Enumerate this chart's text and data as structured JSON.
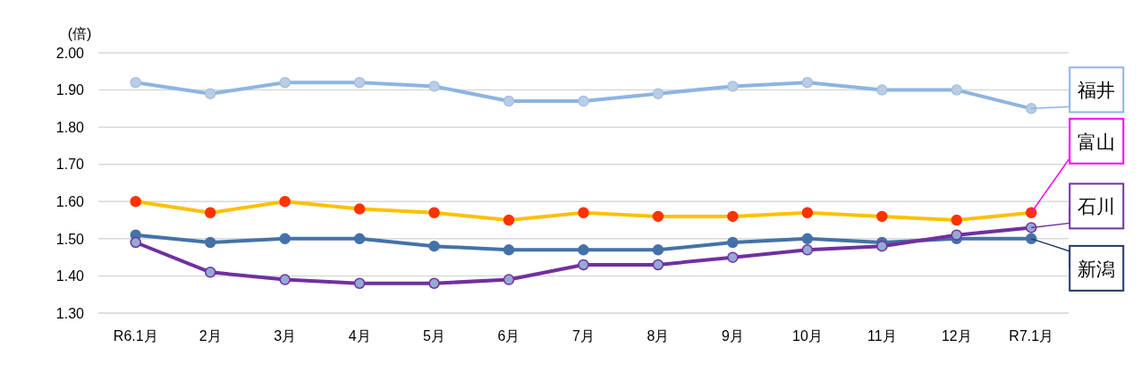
{
  "chart_data": {
    "type": "line",
    "ylabel": "(倍)",
    "categories": [
      "R6.1月",
      "2月",
      "3月",
      "4月",
      "5月",
      "6月",
      "7月",
      "8月",
      "9月",
      "10月",
      "11月",
      "12月",
      "R7.1月"
    ],
    "series": [
      {
        "name": "福井",
        "color": "#8db4e2",
        "values": [
          1.92,
          1.89,
          1.92,
          1.92,
          1.91,
          1.87,
          1.87,
          1.89,
          1.91,
          1.92,
          1.9,
          1.9,
          1.85
        ]
      },
      {
        "name": "富山",
        "color": "#ffc000",
        "values": [
          1.6,
          1.57,
          1.6,
          1.58,
          1.57,
          1.55,
          1.57,
          1.56,
          1.56,
          1.57,
          1.56,
          1.55,
          1.57
        ]
      },
      {
        "name": "新潟",
        "color": "#4472a8",
        "values": [
          1.51,
          1.49,
          1.5,
          1.5,
          1.48,
          1.47,
          1.47,
          1.47,
          1.49,
          1.5,
          1.49,
          1.5,
          1.5
        ]
      },
      {
        "name": "石川",
        "color": "#7030a0",
        "values": [
          1.49,
          1.41,
          1.39,
          1.38,
          1.38,
          1.39,
          1.43,
          1.43,
          1.45,
          1.47,
          1.48,
          1.51,
          1.53
        ]
      }
    ],
    "ylim": [
      1.3,
      2.0
    ],
    "yticks": [
      {
        "value": 1.3,
        "label": "1.30"
      },
      {
        "value": 1.4,
        "label": "1.40"
      },
      {
        "value": 1.5,
        "label": "1.50"
      },
      {
        "value": 1.6,
        "label": "1.60"
      },
      {
        "value": 1.7,
        "label": "1.70"
      },
      {
        "value": 1.8,
        "label": "1.80"
      },
      {
        "value": 1.9,
        "label": "1.90"
      },
      {
        "value": 2.0,
        "label": "2.00"
      }
    ],
    "grid": "y",
    "legend": "right",
    "marker": "circle",
    "line_style": "solid"
  }
}
